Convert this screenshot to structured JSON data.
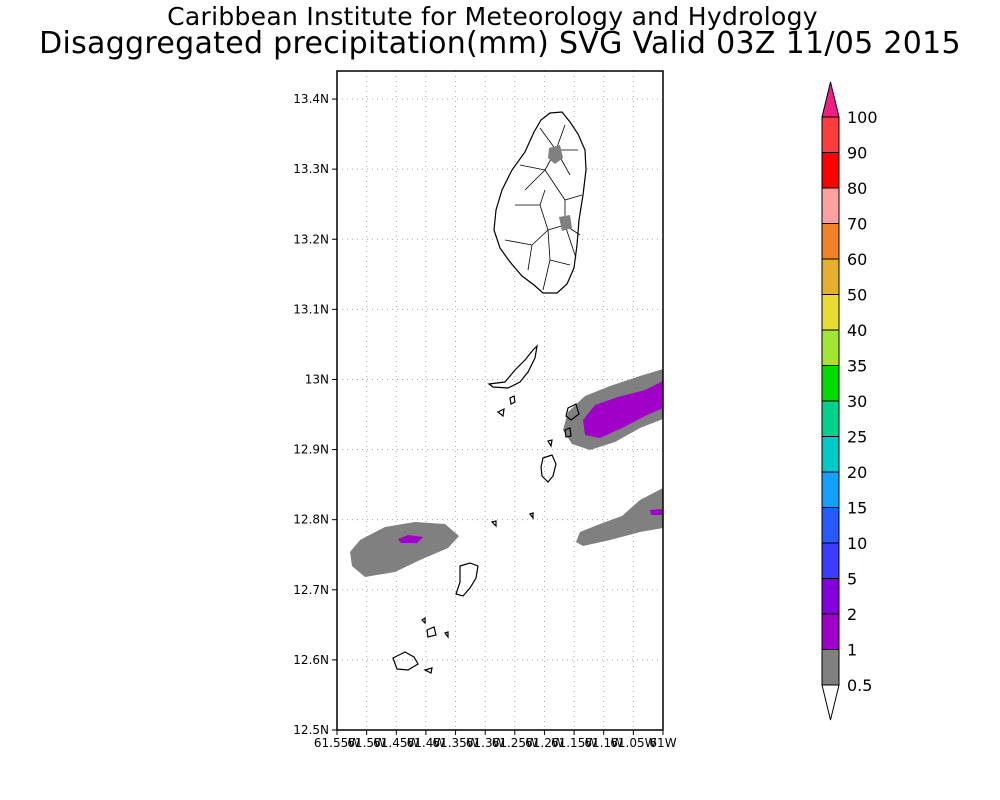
{
  "header": {
    "title": "Caribbean Institute for Meteorology and Hydrology",
    "subtitle": "Disaggregated precipitation(mm) SVG Valid 03Z 11/05 2015"
  },
  "map": {
    "lon_range": [
      -61.55,
      -61.0
    ],
    "lat_range": [
      12.5,
      13.44
    ],
    "lat_ticks": [
      "12.5N",
      "12.6N",
      "12.7N",
      "12.8N",
      "12.9N",
      "13N",
      "13.1N",
      "13.2N",
      "13.3N",
      "13.4N"
    ],
    "lon_ticks": [
      "61.55W",
      "61.5W",
      "61.45W",
      "61.4W",
      "61.35W",
      "61.3W",
      "61.25W",
      "61.2W",
      "61.15W",
      "61.1W",
      "61.05W",
      "61W"
    ],
    "grid": "dotted"
  },
  "legend": {
    "labels": [
      "0.5",
      "1",
      "2",
      "5",
      "10",
      "15",
      "20",
      "25",
      "30",
      "35",
      "40",
      "50",
      "60",
      "70",
      "80",
      "90",
      "100"
    ],
    "colors": [
      "#808080",
      "#a000c8",
      "#8200dc",
      "#3c3cff",
      "#2a5aff",
      "#14a0ff",
      "#00c8c8",
      "#00d28c",
      "#00dc00",
      "#a0e632",
      "#e6dc32",
      "#e6af2d",
      "#f08228",
      "#ffa0a0",
      "#ff0000",
      "#ff3c3c",
      "#f01e80"
    ],
    "bottom_arrow_color": "#ffffff",
    "top_arrow_color": "#f01e80"
  }
}
